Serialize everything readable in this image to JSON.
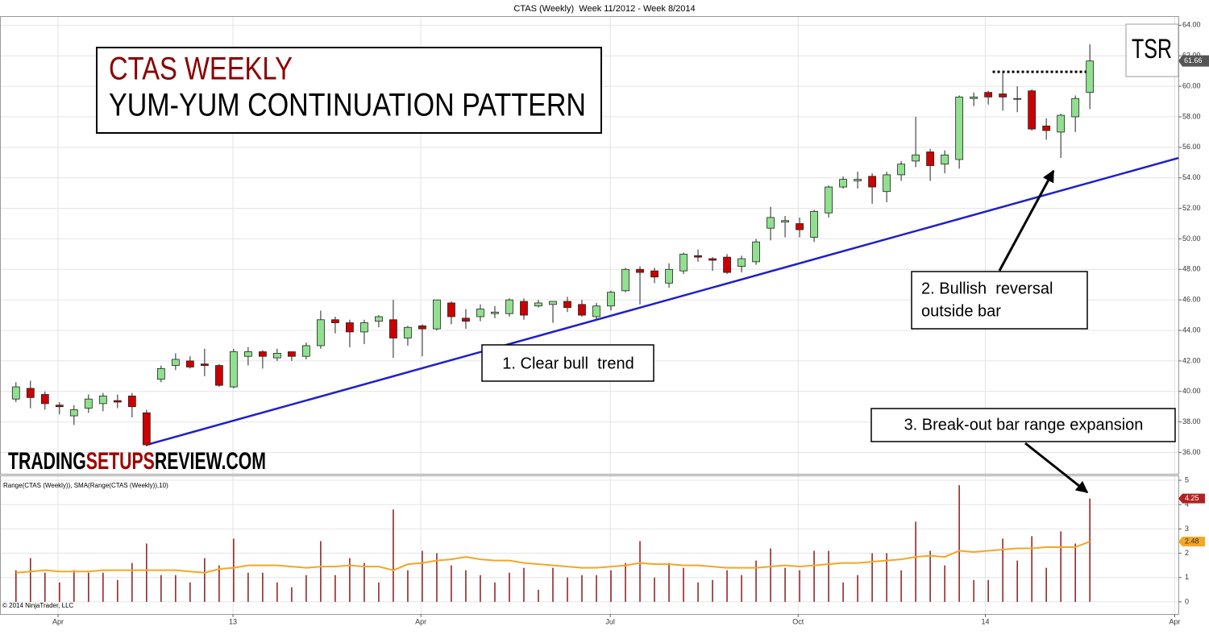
{
  "chart_data": [
    {
      "type": "candlestick",
      "title": "CTAS (Weekly)  Week 11/2012 - Week 8/2014",
      "open": [
        39.5,
        40.2,
        39.8,
        39.1,
        38.4,
        38.9,
        39.2,
        39.4,
        39.7,
        38.6,
        40.8,
        41.7,
        42.0,
        41.8,
        41.7,
        40.3,
        42.3,
        42.6,
        42.2,
        42.6,
        42.3,
        43.0,
        44.7,
        44.5,
        43.9,
        44.6,
        44.7,
        43.5,
        44.3,
        44.1,
        45.8,
        44.8,
        44.9,
        45.1,
        45.1,
        45.9,
        45.6,
        45.7,
        45.9,
        45.7,
        44.9,
        45.6,
        46.6,
        48.0,
        47.9,
        47.1,
        47.9,
        48.9,
        48.7,
        48.8,
        48.2,
        48.5,
        50.7,
        51.1,
        51.0,
        50.1,
        51.7,
        53.4,
        53.8,
        54.1,
        53.1,
        54.2,
        55.1,
        55.7,
        54.9,
        55.2,
        59.2,
        59.6,
        59.5,
        59.2,
        59.7,
        57.4,
        57.0,
        58.0,
        59.6
      ],
      "high": [
        40.6,
        40.7,
        40.0,
        39.3,
        39.1,
        39.8,
        39.9,
        39.8,
        39.9,
        38.8,
        41.7,
        42.5,
        42.3,
        42.8,
        41.8,
        42.8,
        42.9,
        42.7,
        42.8,
        42.6,
        43.2,
        45.3,
        44.9,
        44.7,
        44.7,
        45.0,
        46.0,
        44.3,
        44.4,
        46.0,
        45.9,
        45.4,
        45.7,
        45.6,
        46.1,
        46.1,
        46.0,
        45.9,
        46.2,
        46.0,
        45.8,
        46.6,
        48.1,
        48.2,
        48.1,
        48.4,
        49.1,
        49.3,
        48.8,
        49.0,
        48.9,
        50.0,
        52.1,
        51.5,
        51.4,
        51.9,
        53.5,
        54.1,
        54.4,
        54.3,
        54.4,
        55.1,
        58.0,
        55.9,
        55.8,
        59.4,
        59.6,
        59.7,
        61.0,
        60.0,
        59.8,
        57.9,
        58.2,
        59.4,
        62.75
      ],
      "low": [
        39.3,
        38.9,
        38.8,
        38.5,
        37.8,
        38.6,
        38.7,
        38.9,
        38.3,
        36.4,
        40.6,
        41.4,
        41.5,
        41.0,
        40.3,
        40.2,
        41.7,
        41.5,
        42.0,
        42.0,
        42.1,
        42.8,
        43.8,
        42.9,
        43.1,
        44.2,
        42.2,
        43.0,
        42.3,
        44.0,
        44.4,
        44.1,
        44.6,
        44.8,
        44.9,
        44.7,
        45.5,
        44.5,
        45.2,
        44.9,
        44.7,
        45.3,
        46.5,
        45.7,
        47.1,
        46.8,
        47.7,
        48.5,
        47.9,
        47.7,
        47.8,
        48.3,
        49.9,
        50.1,
        50.1,
        49.8,
        51.4,
        53.3,
        53.3,
        52.3,
        52.4,
        53.8,
        54.7,
        53.8,
        54.3,
        54.6,
        58.7,
        58.8,
        58.4,
        58.3,
        57.1,
        56.5,
        55.3,
        57.0,
        58.5
      ],
      "close": [
        40.3,
        39.6,
        39.2,
        39.0,
        38.8,
        39.5,
        39.7,
        39.3,
        39.0,
        36.5,
        41.5,
        42.1,
        41.6,
        41.7,
        40.4,
        42.6,
        42.6,
        42.3,
        42.5,
        42.3,
        43.0,
        44.7,
        44.5,
        43.9,
        44.5,
        44.9,
        43.5,
        44.2,
        44.1,
        46.0,
        44.9,
        44.6,
        45.4,
        45.2,
        46.0,
        45.0,
        45.8,
        45.9,
        45.5,
        45.0,
        45.6,
        46.5,
        48.0,
        47.8,
        47.5,
        48.0,
        49.0,
        48.8,
        48.6,
        47.8,
        48.7,
        49.8,
        51.4,
        51.2,
        50.6,
        51.8,
        53.4,
        53.9,
        53.9,
        53.4,
        54.2,
        54.9,
        55.5,
        54.8,
        55.5,
        59.3,
        59.3,
        59.3,
        59.3,
        59.2,
        57.2,
        57.1,
        58.1,
        59.2,
        61.66
      ],
      "up_color": "#90e090",
      "down_color": "#cc0000",
      "ylim": [
        34.6,
        64.6
      ],
      "yticks": [
        {
          "value": 36,
          "label": "36.00"
        },
        {
          "value": 38,
          "label": "38.00"
        },
        {
          "value": 40,
          "label": "40.00"
        },
        {
          "value": 42,
          "label": "42.00"
        },
        {
          "value": 44,
          "label": "44.00"
        },
        {
          "value": 46,
          "label": "46.00"
        },
        {
          "value": 48,
          "label": "48.00"
        },
        {
          "value": 50,
          "label": "50.00"
        },
        {
          "value": 52,
          "label": "52.00"
        },
        {
          "value": 54,
          "label": "54.00"
        },
        {
          "value": 56,
          "label": "56.00"
        },
        {
          "value": 58,
          "label": "58.00"
        },
        {
          "value": 60,
          "label": "60.00"
        },
        {
          "value": 62,
          "label": "62.00"
        },
        {
          "value": 64,
          "label": "64.00"
        }
      ],
      "grid": true,
      "trendline": {
        "x": [
          9,
          80.1
        ],
        "y": [
          36.5,
          55.3
        ],
        "color": "#1f1fcc"
      },
      "resistance": {
        "x": [
          67.3,
          74
        ],
        "y": [
          60.95,
          60.95
        ]
      },
      "annotations": {
        "title_line1": "CTAS WEEKLY",
        "title_line2": "YUM-YUM CONTINUATION PATTERN",
        "note1": "1. Clear bull  trend",
        "note2_line1": "2. Bullish  reversal",
        "note2_line2": "outside bar",
        "note3": "3. Break-out bar range expansion",
        "watermark": [
          "TRADING",
          "SETUPS",
          "REVIEW.COM"
        ],
        "logo": "TSR"
      }
    },
    {
      "type": "bar",
      "label": "Range(CTAS (Weekly)), SMA(Range(CTAS (Weekly)),10)",
      "copyright": "© 2014 NinjaTrader, LLC",
      "values": [
        1.3,
        1.8,
        1.2,
        0.8,
        1.3,
        1.2,
        1.2,
        0.9,
        1.6,
        2.4,
        1.1,
        1.1,
        0.8,
        1.8,
        1.5,
        2.6,
        1.2,
        1.2,
        0.8,
        0.6,
        1.1,
        2.5,
        1.1,
        1.8,
        1.6,
        0.8,
        3.8,
        1.3,
        2.1,
        2.0,
        1.5,
        1.3,
        1.1,
        0.8,
        1.2,
        1.4,
        0.5,
        1.4,
        1.0,
        1.1,
        1.1,
        1.3,
        1.6,
        2.5,
        1.0,
        1.6,
        1.4,
        0.8,
        0.9,
        1.3,
        1.1,
        1.7,
        2.2,
        1.4,
        1.3,
        2.1,
        2.1,
        0.8,
        1.1,
        2.0,
        2.0,
        1.3,
        3.3,
        2.1,
        1.5,
        4.8,
        0.9,
        0.9,
        2.6,
        1.7,
        2.7,
        1.4,
        2.9,
        2.4,
        4.25
      ],
      "color": "#8b1a1a",
      "sma": [
        1.2,
        1.25,
        1.3,
        1.25,
        1.25,
        1.25,
        1.3,
        1.3,
        1.3,
        1.3,
        1.3,
        1.3,
        1.25,
        1.2,
        1.35,
        1.4,
        1.5,
        1.5,
        1.5,
        1.45,
        1.4,
        1.45,
        1.45,
        1.5,
        1.45,
        1.45,
        1.3,
        1.55,
        1.6,
        1.7,
        1.75,
        1.85,
        1.75,
        1.7,
        1.7,
        1.6,
        1.55,
        1.5,
        1.45,
        1.4,
        1.4,
        1.45,
        1.5,
        1.6,
        1.55,
        1.55,
        1.5,
        1.5,
        1.45,
        1.4,
        1.4,
        1.4,
        1.45,
        1.5,
        1.45,
        1.5,
        1.55,
        1.6,
        1.6,
        1.65,
        1.7,
        1.75,
        1.85,
        1.9,
        1.85,
        2.1,
        2.05,
        2.1,
        2.15,
        2.2,
        2.2,
        2.25,
        2.25,
        2.25,
        2.48
      ],
      "sma_color": "#f5a623",
      "ylim": [
        -0.5,
        5.2
      ],
      "yticks": [
        0,
        1,
        2,
        3,
        4,
        5
      ],
      "xlim": [
        -1.1,
        80.1
      ],
      "xticks": [
        {
          "value": 2.9,
          "label": "Apr"
        },
        {
          "value": 14.95,
          "label": "13"
        },
        {
          "value": 27.9,
          "label": "Apr"
        },
        {
          "value": 40.95,
          "label": "Jul"
        },
        {
          "value": 53.9,
          "label": "Oct"
        },
        {
          "value": 66.8,
          "label": "14"
        },
        {
          "value": 79.85,
          "label": "Apr"
        }
      ]
    }
  ]
}
